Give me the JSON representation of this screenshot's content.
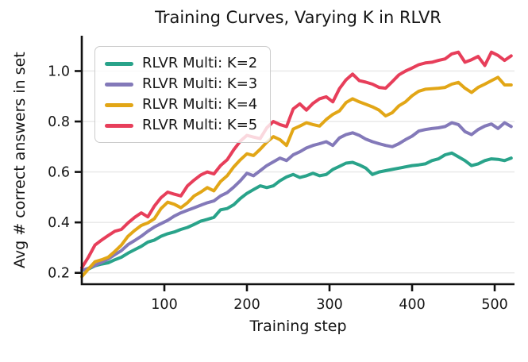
{
  "chart_data": {
    "type": "line",
    "title": "Training Curves, Varying K in RLVR",
    "xlabel": "Training step",
    "ylabel": "Avg # correct answers in set",
    "xlim": [
      0,
      524
    ],
    "ylim": [
      0.155,
      1.14
    ],
    "xticks": [
      100,
      200,
      300,
      400,
      500
    ],
    "yticks": [
      0.2,
      0.4,
      0.6,
      0.8,
      1.0
    ],
    "grid": "horizontal-only",
    "grid_color": "#e7e7e7",
    "spine_color": "#111111",
    "legend_position": "upper-left",
    "x": [
      0,
      8,
      16,
      24,
      32,
      40,
      48,
      56,
      64,
      72,
      80,
      88,
      96,
      104,
      112,
      120,
      128,
      136,
      144,
      152,
      160,
      168,
      176,
      184,
      192,
      200,
      208,
      216,
      224,
      232,
      240,
      248,
      256,
      264,
      272,
      280,
      288,
      296,
      304,
      312,
      320,
      328,
      336,
      344,
      352,
      360,
      368,
      376,
      384,
      392,
      400,
      408,
      416,
      424,
      432,
      440,
      448,
      456,
      464,
      472,
      480,
      488,
      496,
      504,
      512,
      520
    ],
    "series": [
      {
        "name": "RLVR Multi: K=2",
        "color": "#29a38a",
        "values": [
          0.21,
          0.215,
          0.228,
          0.235,
          0.24,
          0.252,
          0.262,
          0.278,
          0.292,
          0.305,
          0.322,
          0.33,
          0.345,
          0.355,
          0.362,
          0.372,
          0.38,
          0.392,
          0.405,
          0.412,
          0.42,
          0.45,
          0.455,
          0.47,
          0.495,
          0.515,
          0.53,
          0.545,
          0.538,
          0.545,
          0.565,
          0.58,
          0.59,
          0.578,
          0.585,
          0.595,
          0.585,
          0.59,
          0.61,
          0.622,
          0.635,
          0.638,
          0.628,
          0.615,
          0.59,
          0.6,
          0.605,
          0.61,
          0.615,
          0.62,
          0.625,
          0.628,
          0.632,
          0.645,
          0.652,
          0.668,
          0.675,
          0.66,
          0.645,
          0.625,
          0.632,
          0.645,
          0.652,
          0.65,
          0.645,
          0.655
        ]
      },
      {
        "name": "RLVR Multi: K=3",
        "color": "#8379b9",
        "values": [
          0.21,
          0.218,
          0.23,
          0.242,
          0.255,
          0.272,
          0.288,
          0.312,
          0.328,
          0.345,
          0.365,
          0.382,
          0.395,
          0.408,
          0.425,
          0.438,
          0.448,
          0.458,
          0.468,
          0.478,
          0.485,
          0.505,
          0.518,
          0.54,
          0.565,
          0.595,
          0.585,
          0.605,
          0.625,
          0.64,
          0.655,
          0.645,
          0.668,
          0.68,
          0.695,
          0.705,
          0.712,
          0.72,
          0.705,
          0.735,
          0.748,
          0.755,
          0.745,
          0.73,
          0.72,
          0.712,
          0.705,
          0.7,
          0.712,
          0.728,
          0.742,
          0.762,
          0.768,
          0.772,
          0.775,
          0.78,
          0.795,
          0.788,
          0.76,
          0.748,
          0.768,
          0.782,
          0.79,
          0.772,
          0.795,
          0.78
        ]
      },
      {
        "name": "RLVR Multi: K=4",
        "color": "#e2a616",
        "values": [
          0.185,
          0.215,
          0.244,
          0.252,
          0.262,
          0.285,
          0.31,
          0.345,
          0.368,
          0.388,
          0.398,
          0.415,
          0.455,
          0.48,
          0.472,
          0.458,
          0.478,
          0.505,
          0.52,
          0.538,
          0.525,
          0.562,
          0.585,
          0.62,
          0.648,
          0.672,
          0.665,
          0.69,
          0.718,
          0.74,
          0.728,
          0.705,
          0.77,
          0.782,
          0.795,
          0.788,
          0.782,
          0.808,
          0.828,
          0.842,
          0.875,
          0.89,
          0.878,
          0.868,
          0.858,
          0.845,
          0.822,
          0.835,
          0.862,
          0.878,
          0.902,
          0.92,
          0.928,
          0.93,
          0.932,
          0.935,
          0.948,
          0.955,
          0.932,
          0.915,
          0.935,
          0.948,
          0.962,
          0.975,
          0.945,
          0.945
        ]
      },
      {
        "name": "RLVR Multi: K=5",
        "color": "#e73e5a",
        "values": [
          0.22,
          0.262,
          0.31,
          0.33,
          0.348,
          0.365,
          0.372,
          0.398,
          0.42,
          0.438,
          0.422,
          0.465,
          0.498,
          0.52,
          0.512,
          0.505,
          0.545,
          0.568,
          0.588,
          0.6,
          0.592,
          0.625,
          0.648,
          0.688,
          0.722,
          0.745,
          0.738,
          0.732,
          0.775,
          0.8,
          0.788,
          0.78,
          0.85,
          0.87,
          0.845,
          0.872,
          0.89,
          0.898,
          0.878,
          0.93,
          0.965,
          0.988,
          0.962,
          0.956,
          0.948,
          0.935,
          0.932,
          0.958,
          0.985,
          1.0,
          1.012,
          1.025,
          1.032,
          1.035,
          1.042,
          1.048,
          1.068,
          1.075,
          1.035,
          1.045,
          1.058,
          1.022,
          1.075,
          1.062,
          1.042,
          1.06
        ]
      }
    ]
  }
}
